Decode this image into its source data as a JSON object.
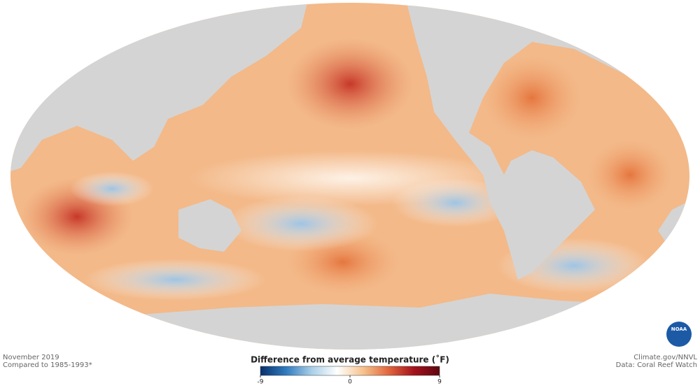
{
  "header": {
    "date": "November 2019",
    "baseline": "Compared to 1985-1993*"
  },
  "legend": {
    "title": "Difference from average temperature (˚F)",
    "range": [
      -9,
      9
    ],
    "ticks": [
      -9,
      0,
      9
    ],
    "colors": [
      "#08306b",
      "#2f7bbf",
      "#a9cfe8",
      "#ffffff",
      "#f6c48f",
      "#e2673d",
      "#a3121c",
      "#5e0610"
    ]
  },
  "credits": {
    "source": "Climate.gov/NNVL",
    "data": "Data: Coral Reef Watch"
  },
  "logo": {
    "text": "NOAA"
  }
}
